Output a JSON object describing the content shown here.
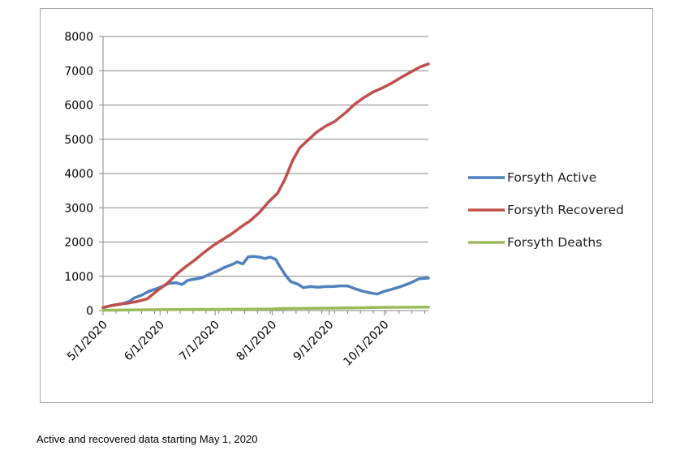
{
  "caption": "Active and recovered data starting May 1, 2020",
  "chart_data": {
    "type": "line",
    "title": "",
    "xlabel": "",
    "ylabel": "",
    "x_type": "date",
    "xlim": [
      "2020-05-01",
      "2020-10-25"
    ],
    "ylim": [
      0,
      8000
    ],
    "y_ticks": [
      0,
      1000,
      2000,
      3000,
      4000,
      5000,
      6000,
      7000,
      8000
    ],
    "x_ticks": [
      "2020-05-01",
      "2020-06-01",
      "2020-07-01",
      "2020-08-01",
      "2020-09-01",
      "2020-10-01"
    ],
    "x_tick_labels": [
      "5/1/2020",
      "6/1/2020",
      "7/1/2020",
      "8/1/2020",
      "9/1/2020",
      "10/1/2020"
    ],
    "grid": true,
    "legend_position": "right",
    "series": [
      {
        "name": "Forsyth Active",
        "color": "#4f81bd",
        "points": [
          [
            "2020-05-01",
            80
          ],
          [
            "2020-05-05",
            140
          ],
          [
            "2020-05-10",
            180
          ],
          [
            "2020-05-15",
            260
          ],
          [
            "2020-05-18",
            370
          ],
          [
            "2020-05-22",
            450
          ],
          [
            "2020-05-26",
            560
          ],
          [
            "2020-05-30",
            640
          ],
          [
            "2020-06-03",
            720
          ],
          [
            "2020-06-06",
            800
          ],
          [
            "2020-06-10",
            810
          ],
          [
            "2020-06-13",
            760
          ],
          [
            "2020-06-16",
            880
          ],
          [
            "2020-06-20",
            920
          ],
          [
            "2020-06-24",
            960
          ],
          [
            "2020-06-28",
            1060
          ],
          [
            "2020-07-02",
            1150
          ],
          [
            "2020-07-06",
            1260
          ],
          [
            "2020-07-10",
            1340
          ],
          [
            "2020-07-13",
            1420
          ],
          [
            "2020-07-16",
            1360
          ],
          [
            "2020-07-19",
            1570
          ],
          [
            "2020-07-22",
            1580
          ],
          [
            "2020-07-25",
            1560
          ],
          [
            "2020-07-28",
            1520
          ],
          [
            "2020-07-31",
            1560
          ],
          [
            "2020-08-03",
            1490
          ],
          [
            "2020-08-05",
            1300
          ],
          [
            "2020-08-08",
            1050
          ],
          [
            "2020-08-11",
            850
          ],
          [
            "2020-08-15",
            770
          ],
          [
            "2020-08-18",
            670
          ],
          [
            "2020-08-22",
            700
          ],
          [
            "2020-08-26",
            680
          ],
          [
            "2020-08-30",
            700
          ],
          [
            "2020-09-03",
            700
          ],
          [
            "2020-09-07",
            720
          ],
          [
            "2020-09-11",
            720
          ],
          [
            "2020-09-15",
            640
          ],
          [
            "2020-09-19",
            570
          ],
          [
            "2020-09-23",
            520
          ],
          [
            "2020-09-27",
            480
          ],
          [
            "2020-10-01",
            560
          ],
          [
            "2020-10-05",
            620
          ],
          [
            "2020-10-10",
            700
          ],
          [
            "2020-10-15",
            800
          ],
          [
            "2020-10-20",
            930
          ],
          [
            "2020-10-25",
            950
          ]
        ]
      },
      {
        "name": "Forsyth Recovered",
        "color": "#c0504d",
        "points": [
          [
            "2020-05-01",
            90
          ],
          [
            "2020-05-05",
            140
          ],
          [
            "2020-05-10",
            190
          ],
          [
            "2020-05-15",
            220
          ],
          [
            "2020-05-20",
            270
          ],
          [
            "2020-05-25",
            340
          ],
          [
            "2020-05-30",
            560
          ],
          [
            "2020-06-05",
            800
          ],
          [
            "2020-06-10",
            1060
          ],
          [
            "2020-06-15",
            1280
          ],
          [
            "2020-06-20",
            1480
          ],
          [
            "2020-06-25",
            1700
          ],
          [
            "2020-06-30",
            1900
          ],
          [
            "2020-07-05",
            2070
          ],
          [
            "2020-07-10",
            2240
          ],
          [
            "2020-07-15",
            2440
          ],
          [
            "2020-07-20",
            2620
          ],
          [
            "2020-07-25",
            2860
          ],
          [
            "2020-07-30",
            3170
          ],
          [
            "2020-08-04",
            3430
          ],
          [
            "2020-08-08",
            3840
          ],
          [
            "2020-08-12",
            4370
          ],
          [
            "2020-08-16",
            4750
          ],
          [
            "2020-08-20",
            4950
          ],
          [
            "2020-08-25",
            5200
          ],
          [
            "2020-08-30",
            5380
          ],
          [
            "2020-09-04",
            5520
          ],
          [
            "2020-09-10",
            5780
          ],
          [
            "2020-09-15",
            6030
          ],
          [
            "2020-09-20",
            6220
          ],
          [
            "2020-09-25",
            6380
          ],
          [
            "2020-09-30",
            6500
          ],
          [
            "2020-10-05",
            6640
          ],
          [
            "2020-10-10",
            6800
          ],
          [
            "2020-10-15",
            6950
          ],
          [
            "2020-10-20",
            7100
          ],
          [
            "2020-10-25",
            7200
          ]
        ]
      },
      {
        "name": "Forsyth Deaths",
        "color": "#9bbb59",
        "points": [
          [
            "2020-05-01",
            10
          ],
          [
            "2020-06-01",
            25
          ],
          [
            "2020-07-01",
            35
          ],
          [
            "2020-08-01",
            45
          ],
          [
            "2020-08-06",
            60
          ],
          [
            "2020-09-01",
            70
          ],
          [
            "2020-09-15",
            80
          ],
          [
            "2020-10-01",
            95
          ],
          [
            "2020-10-25",
            100
          ]
        ]
      }
    ]
  }
}
